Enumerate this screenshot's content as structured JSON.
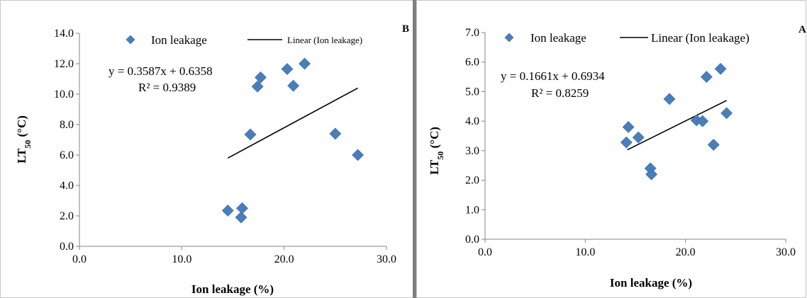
{
  "chart_data": [
    {
      "type": "scatter",
      "panel_label": "B",
      "xlabel": "Ion leakage (%)",
      "ylabel_main": "LT",
      "ylabel_sub": "50",
      "ylabel_unit": " (°C)",
      "xlim": [
        0,
        30
      ],
      "ylim": [
        0,
        14
      ],
      "xticks": [
        0,
        10,
        20,
        30
      ],
      "yticks": [
        0,
        2,
        4,
        6,
        8,
        10,
        12,
        14
      ],
      "xtick_labels": [
        "0.0",
        "10.0",
        "20.0",
        "30.0"
      ],
      "ytick_labels": [
        "0.0",
        "2.0",
        "4.0",
        "6.0",
        "8.0",
        "10.0",
        "12.0",
        "14.0"
      ],
      "legend": {
        "series": "Ion leakage",
        "trend": "Linear (Ion leakage)",
        "position": "top"
      },
      "equation": "y = 0.3587x + 0.6358",
      "r_squared": "R² = 0.9389",
      "marker_color": "#4a7ebb",
      "trendline_x": [
        14.5,
        27.2
      ],
      "trendline_y": [
        5.8,
        10.4
      ],
      "series": [
        {
          "name": "Ion leakage",
          "points": [
            {
              "x": 14.5,
              "y": 2.35
            },
            {
              "x": 15.8,
              "y": 1.9
            },
            {
              "x": 15.9,
              "y": 2.5
            },
            {
              "x": 16.7,
              "y": 7.35
            },
            {
              "x": 17.4,
              "y": 10.5
            },
            {
              "x": 17.7,
              "y": 11.1
            },
            {
              "x": 20.3,
              "y": 11.65
            },
            {
              "x": 20.9,
              "y": 10.55
            },
            {
              "x": 22.0,
              "y": 12.0
            },
            {
              "x": 25.0,
              "y": 7.4
            },
            {
              "x": 27.2,
              "y": 6.0
            }
          ]
        }
      ]
    },
    {
      "type": "scatter",
      "panel_label": "A",
      "xlabel": "Ion leakage (%)",
      "ylabel_main": "LT",
      "ylabel_sub": "50",
      "ylabel_unit": " (°C)",
      "xlim": [
        0,
        30
      ],
      "ylim": [
        0,
        7
      ],
      "xticks": [
        0,
        10,
        20,
        30
      ],
      "yticks": [
        0,
        1,
        2,
        3,
        4,
        5,
        6,
        7
      ],
      "xtick_labels": [
        "0.0",
        "10.0",
        "20.0",
        "30.0"
      ],
      "ytick_labels": [
        "0.0",
        "1.0",
        "2.0",
        "3.0",
        "4.0",
        "5.0",
        "6.0",
        "7.0"
      ],
      "legend": {
        "series": "Ion leakage",
        "trend": "Linear (Ion leakage)",
        "position": "top"
      },
      "equation": "y = 0.1661x + 0.6934",
      "r_squared": "R² = 0.8259",
      "marker_color": "#4a7ebb",
      "trendline_x": [
        14.2,
        24.1
      ],
      "trendline_y": [
        3.03,
        4.7
      ],
      "series": [
        {
          "name": "Ion leakage",
          "points": [
            {
              "x": 14.1,
              "y": 3.28
            },
            {
              "x": 14.3,
              "y": 3.8
            },
            {
              "x": 15.3,
              "y": 3.45
            },
            {
              "x": 16.5,
              "y": 2.4
            },
            {
              "x": 16.6,
              "y": 2.2
            },
            {
              "x": 18.4,
              "y": 4.75
            },
            {
              "x": 21.1,
              "y": 4.03
            },
            {
              "x": 21.7,
              "y": 4.0
            },
            {
              "x": 22.1,
              "y": 5.5
            },
            {
              "x": 22.8,
              "y": 3.2
            },
            {
              "x": 23.5,
              "y": 5.77
            },
            {
              "x": 24.1,
              "y": 4.27
            }
          ]
        }
      ]
    }
  ]
}
